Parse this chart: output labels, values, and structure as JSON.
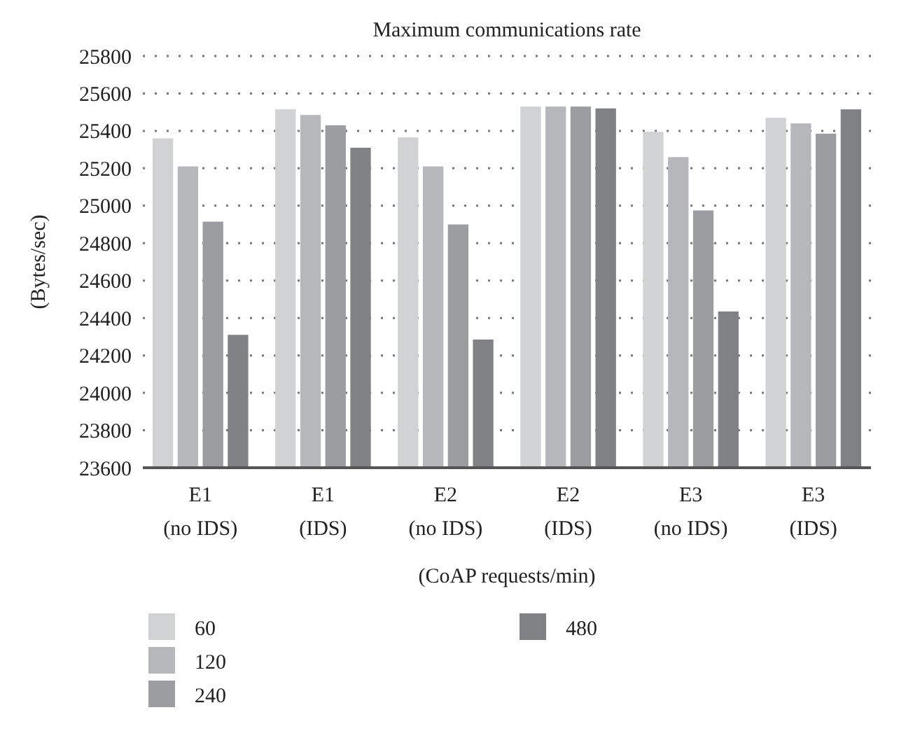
{
  "chart_data": {
    "type": "bar",
    "title": "Maximum communications rate",
    "xlabel": "(CoAP requests/min)",
    "ylabel": "(Bytes/sec)",
    "categories": [
      "E1\n(no IDS)",
      "E1\n(IDS)",
      "E2\n(no IDS)",
      "E2\n(IDS)",
      "E3\n(no IDS)",
      "E3\n(IDS)"
    ],
    "series": [
      {
        "name": "60",
        "color": "#d1d2d4",
        "values": [
          25360,
          25515,
          25365,
          25530,
          25395,
          25470
        ]
      },
      {
        "name": "120",
        "color": "#b6b7ba",
        "values": [
          25210,
          25485,
          25210,
          25530,
          25260,
          25440
        ]
      },
      {
        "name": "240",
        "color": "#9c9da1",
        "values": [
          24915,
          25430,
          24900,
          25530,
          24975,
          25385
        ]
      },
      {
        "name": "480",
        "color": "#808185",
        "values": [
          24310,
          25310,
          24285,
          25520,
          24435,
          25515
        ]
      }
    ],
    "ylim": [
      23600,
      25800
    ],
    "yticks": [
      23600,
      23800,
      24000,
      24200,
      24400,
      24600,
      24800,
      25000,
      25200,
      25400,
      25600,
      25800
    ],
    "grid": "y",
    "legend": "bottom"
  }
}
